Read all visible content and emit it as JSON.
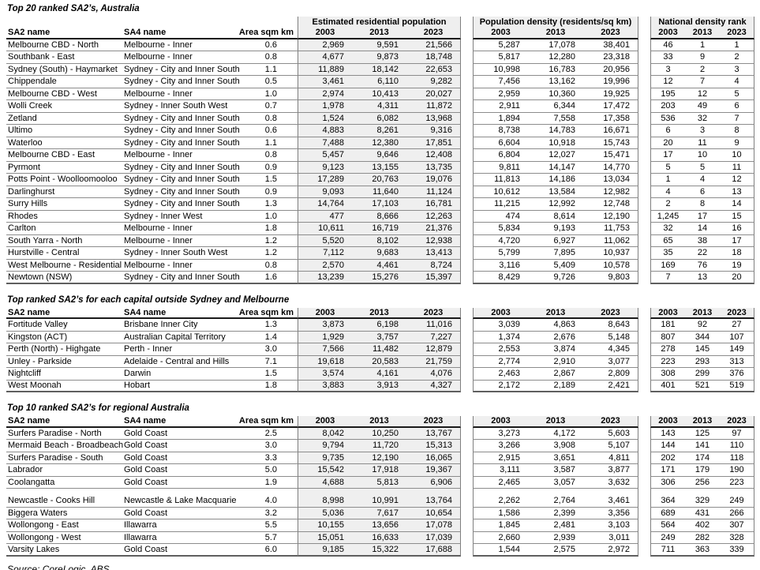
{
  "source": "Source:  CoreLogic, ABS",
  "style": {
    "group_fill": "#efefef",
    "row_line": "#8c8c8c",
    "header_line": "#1a1a1a",
    "text": "#000000"
  },
  "columns": {
    "sa2": "SA2 name",
    "sa4": "SA4 name",
    "area": "Area sqm km"
  },
  "groups": [
    {
      "title": "Estimated residential population",
      "years": [
        "2003",
        "2013",
        "2023"
      ]
    },
    {
      "title": "Population density (residents/sq km)",
      "years": [
        "2003",
        "2013",
        "2023"
      ]
    },
    {
      "title": "National density rank",
      "years": [
        "2003",
        "2013",
        "2023"
      ]
    }
  ],
  "sections": [
    {
      "title": "Top 20 ranked SA2’s, Australia",
      "show_group_titles": true,
      "rows": [
        {
          "sa2": "Melbourne CBD - North",
          "sa4": "Melbourne - Inner",
          "area": "0.6",
          "erp": [
            "2,969",
            "9,591",
            "21,566"
          ],
          "density": [
            "5,287",
            "17,078",
            "38,401"
          ],
          "rank": [
            "46",
            "1",
            "1"
          ]
        },
        {
          "sa2": "Southbank - East",
          "sa4": "Melbourne - Inner",
          "area": "0.8",
          "erp": [
            "4,677",
            "9,873",
            "18,748"
          ],
          "density": [
            "5,817",
            "12,280",
            "23,318"
          ],
          "rank": [
            "33",
            "9",
            "2"
          ]
        },
        {
          "sa2": "Sydney (South) - Haymarket",
          "sa4": "Sydney - City and Inner South",
          "area": "1.1",
          "erp": [
            "11,889",
            "18,142",
            "22,653"
          ],
          "density": [
            "10,998",
            "16,783",
            "20,956"
          ],
          "rank": [
            "3",
            "2",
            "3"
          ]
        },
        {
          "sa2": "Chippendale",
          "sa4": "Sydney - City and Inner South",
          "area": "0.5",
          "erp": [
            "3,461",
            "6,110",
            "9,282"
          ],
          "density": [
            "7,456",
            "13,162",
            "19,996"
          ],
          "rank": [
            "12",
            "7",
            "4"
          ]
        },
        {
          "sa2": "Melbourne CBD - West",
          "sa4": "Melbourne - Inner",
          "area": "1.0",
          "erp": [
            "2,974",
            "10,413",
            "20,027"
          ],
          "density": [
            "2,959",
            "10,360",
            "19,925"
          ],
          "rank": [
            "195",
            "12",
            "5"
          ]
        },
        {
          "sa2": "Wolli Creek",
          "sa4": "Sydney - Inner South West",
          "area": "0.7",
          "erp": [
            "1,978",
            "4,311",
            "11,872"
          ],
          "density": [
            "2,911",
            "6,344",
            "17,472"
          ],
          "rank": [
            "203",
            "49",
            "6"
          ]
        },
        {
          "sa2": "Zetland",
          "sa4": "Sydney - City and Inner South",
          "area": "0.8",
          "erp": [
            "1,524",
            "6,082",
            "13,968"
          ],
          "density": [
            "1,894",
            "7,558",
            "17,358"
          ],
          "rank": [
            "536",
            "32",
            "7"
          ]
        },
        {
          "sa2": "Ultimo",
          "sa4": "Sydney - City and Inner South",
          "area": "0.6",
          "erp": [
            "4,883",
            "8,261",
            "9,316"
          ],
          "density": [
            "8,738",
            "14,783",
            "16,671"
          ],
          "rank": [
            "6",
            "3",
            "8"
          ]
        },
        {
          "sa2": "Waterloo",
          "sa4": "Sydney - City and Inner South",
          "area": "1.1",
          "erp": [
            "7,488",
            "12,380",
            "17,851"
          ],
          "density": [
            "6,604",
            "10,918",
            "15,743"
          ],
          "rank": [
            "20",
            "11",
            "9"
          ]
        },
        {
          "sa2": "Melbourne CBD - East",
          "sa4": "Melbourne - Inner",
          "area": "0.8",
          "erp": [
            "5,457",
            "9,646",
            "12,408"
          ],
          "density": [
            "6,804",
            "12,027",
            "15,471"
          ],
          "rank": [
            "17",
            "10",
            "10"
          ]
        },
        {
          "sa2": "Pyrmont",
          "sa4": "Sydney - City and Inner South",
          "area": "0.9",
          "erp": [
            "9,123",
            "13,155",
            "13,735"
          ],
          "density": [
            "9,811",
            "14,147",
            "14,770"
          ],
          "rank": [
            "5",
            "5",
            "11"
          ]
        },
        {
          "sa2": "Potts Point - Woolloomooloo",
          "sa4": "Sydney - City and Inner South",
          "area": "1.5",
          "erp": [
            "17,289",
            "20,763",
            "19,076"
          ],
          "density": [
            "11,813",
            "14,186",
            "13,034"
          ],
          "rank": [
            "1",
            "4",
            "12"
          ]
        },
        {
          "sa2": "Darlinghurst",
          "sa4": "Sydney - City and Inner South",
          "area": "0.9",
          "erp": [
            "9,093",
            "11,640",
            "11,124"
          ],
          "density": [
            "10,612",
            "13,584",
            "12,982"
          ],
          "rank": [
            "4",
            "6",
            "13"
          ]
        },
        {
          "sa2": "Surry Hills",
          "sa4": "Sydney - City and Inner South",
          "area": "1.3",
          "erp": [
            "14,764",
            "17,103",
            "16,781"
          ],
          "density": [
            "11,215",
            "12,992",
            "12,748"
          ],
          "rank": [
            "2",
            "8",
            "14"
          ]
        },
        {
          "sa2": "Rhodes",
          "sa4": "Sydney - Inner West",
          "area": "1.0",
          "erp": [
            "477",
            "8,666",
            "12,263"
          ],
          "density": [
            "474",
            "8,614",
            "12,190"
          ],
          "rank": [
            "1,245",
            "17",
            "15"
          ]
        },
        {
          "sa2": "Carlton",
          "sa4": "Melbourne - Inner",
          "area": "1.8",
          "erp": [
            "10,611",
            "16,719",
            "21,376"
          ],
          "density": [
            "5,834",
            "9,193",
            "11,753"
          ],
          "rank": [
            "32",
            "14",
            "16"
          ]
        },
        {
          "sa2": "South Yarra - North",
          "sa4": "Melbourne - Inner",
          "area": "1.2",
          "erp": [
            "5,520",
            "8,102",
            "12,938"
          ],
          "density": [
            "4,720",
            "6,927",
            "11,062"
          ],
          "rank": [
            "65",
            "38",
            "17"
          ]
        },
        {
          "sa2": "Hurstville - Central",
          "sa4": "Sydney - Inner South West",
          "area": "1.2",
          "erp": [
            "7,112",
            "9,683",
            "13,413"
          ],
          "density": [
            "5,799",
            "7,895",
            "10,937"
          ],
          "rank": [
            "35",
            "22",
            "18"
          ]
        },
        {
          "sa2": "West Melbourne - Residential",
          "sa4": "Melbourne - Inner",
          "area": "0.8",
          "erp": [
            "2,570",
            "4,461",
            "8,724"
          ],
          "density": [
            "3,116",
            "5,409",
            "10,578"
          ],
          "rank": [
            "169",
            "76",
            "19"
          ]
        },
        {
          "sa2": "Newtown (NSW)",
          "sa4": "Sydney - City and Inner South",
          "area": "1.6",
          "erp": [
            "13,239",
            "15,276",
            "15,397"
          ],
          "density": [
            "8,429",
            "9,726",
            "9,803"
          ],
          "rank": [
            "7",
            "13",
            "20"
          ]
        }
      ]
    },
    {
      "title": "Top ranked SA2’s for each capital outside Sydney and Melbourne",
      "show_group_titles": false,
      "rows": [
        {
          "sa2": "Fortitude Valley",
          "sa4": "Brisbane Inner City",
          "area": "1.3",
          "erp": [
            "3,873",
            "6,198",
            "11,016"
          ],
          "density": [
            "3,039",
            "4,863",
            "8,643"
          ],
          "rank": [
            "181",
            "92",
            "27"
          ]
        },
        {
          "sa2": "Kingston (ACT)",
          "sa4": "Australian Capital Territory",
          "area": "1.4",
          "erp": [
            "1,929",
            "3,757",
            "7,227"
          ],
          "density": [
            "1,374",
            "2,676",
            "5,148"
          ],
          "rank": [
            "807",
            "344",
            "107"
          ]
        },
        {
          "sa2": "Perth (North) - Highgate",
          "sa4": "Perth - Inner",
          "area": "3.0",
          "erp": [
            "7,566",
            "11,482",
            "12,879"
          ],
          "density": [
            "2,553",
            "3,874",
            "4,345"
          ],
          "rank": [
            "278",
            "145",
            "149"
          ]
        },
        {
          "sa2": "Unley - Parkside",
          "sa4": "Adelaide - Central and Hills",
          "area": "7.1",
          "erp": [
            "19,618",
            "20,583",
            "21,759"
          ],
          "density": [
            "2,774",
            "2,910",
            "3,077"
          ],
          "rank": [
            "223",
            "293",
            "313"
          ]
        },
        {
          "sa2": "Nightcliff",
          "sa4": "Darwin",
          "area": "1.5",
          "erp": [
            "3,574",
            "4,161",
            "4,076"
          ],
          "density": [
            "2,463",
            "2,867",
            "2,809"
          ],
          "rank": [
            "308",
            "299",
            "376"
          ]
        },
        {
          "sa2": "West Moonah",
          "sa4": "Hobart",
          "area": "1.8",
          "erp": [
            "3,883",
            "3,913",
            "4,327"
          ],
          "density": [
            "2,172",
            "2,189",
            "2,421"
          ],
          "rank": [
            "401",
            "521",
            "519"
          ]
        }
      ]
    },
    {
      "title": "Top 10 ranked SA2’s for regional Australia",
      "show_group_titles": false,
      "gap_before": 5,
      "rows": [
        {
          "sa2": "Surfers Paradise - North",
          "sa4": "Gold Coast",
          "area": "2.5",
          "erp": [
            "8,042",
            "10,250",
            "13,767"
          ],
          "density": [
            "3,273",
            "4,172",
            "5,603"
          ],
          "rank": [
            "143",
            "125",
            "97"
          ]
        },
        {
          "sa2": "Mermaid Beach - Broadbeach",
          "sa4": "Gold Coast",
          "area": "3.0",
          "erp": [
            "9,794",
            "11,720",
            "15,313"
          ],
          "density": [
            "3,266",
            "3,908",
            "5,107"
          ],
          "rank": [
            "144",
            "141",
            "110"
          ]
        },
        {
          "sa2": "Surfers Paradise - South",
          "sa4": "Gold Coast",
          "area": "3.3",
          "erp": [
            "9,735",
            "12,190",
            "16,065"
          ],
          "density": [
            "2,915",
            "3,651",
            "4,811"
          ],
          "rank": [
            "202",
            "174",
            "118"
          ]
        },
        {
          "sa2": "Labrador",
          "sa4": "Gold Coast",
          "area": "5.0",
          "erp": [
            "15,542",
            "17,918",
            "19,367"
          ],
          "density": [
            "3,111",
            "3,587",
            "3,877"
          ],
          "rank": [
            "171",
            "179",
            "190"
          ]
        },
        {
          "sa2": "Coolangatta",
          "sa4": "Gold Coast",
          "area": "1.9",
          "erp": [
            "4,688",
            "5,813",
            "6,906"
          ],
          "density": [
            "2,465",
            "3,057",
            "3,632"
          ],
          "rank": [
            "306",
            "256",
            "223"
          ]
        },
        {
          "sa2": "Newcastle - Cooks Hill",
          "sa4": "Newcastle & Lake Macquarie",
          "area": "4.0",
          "erp": [
            "8,998",
            "10,991",
            "13,764"
          ],
          "density": [
            "2,262",
            "2,764",
            "3,461"
          ],
          "rank": [
            "364",
            "329",
            "249"
          ]
        },
        {
          "sa2": "Biggera Waters",
          "sa4": "Gold Coast",
          "area": "3.2",
          "erp": [
            "5,036",
            "7,617",
            "10,654"
          ],
          "density": [
            "1,586",
            "2,399",
            "3,356"
          ],
          "rank": [
            "689",
            "431",
            "266"
          ]
        },
        {
          "sa2": "Wollongong - East",
          "sa4": "Illawarra",
          "area": "5.5",
          "erp": [
            "10,155",
            "13,656",
            "17,078"
          ],
          "density": [
            "1,845",
            "2,481",
            "3,103"
          ],
          "rank": [
            "564",
            "402",
            "307"
          ]
        },
        {
          "sa2": "Wollongong - West",
          "sa4": "Illawarra",
          "area": "5.7",
          "erp": [
            "15,051",
            "16,633",
            "17,039"
          ],
          "density": [
            "2,660",
            "2,939",
            "3,011"
          ],
          "rank": [
            "249",
            "282",
            "328"
          ]
        },
        {
          "sa2": "Varsity Lakes",
          "sa4": "Gold Coast",
          "area": "6.0",
          "erp": [
            "9,185",
            "15,322",
            "17,688"
          ],
          "density": [
            "1,544",
            "2,575",
            "2,972"
          ],
          "rank": [
            "711",
            "363",
            "339"
          ]
        }
      ]
    }
  ]
}
